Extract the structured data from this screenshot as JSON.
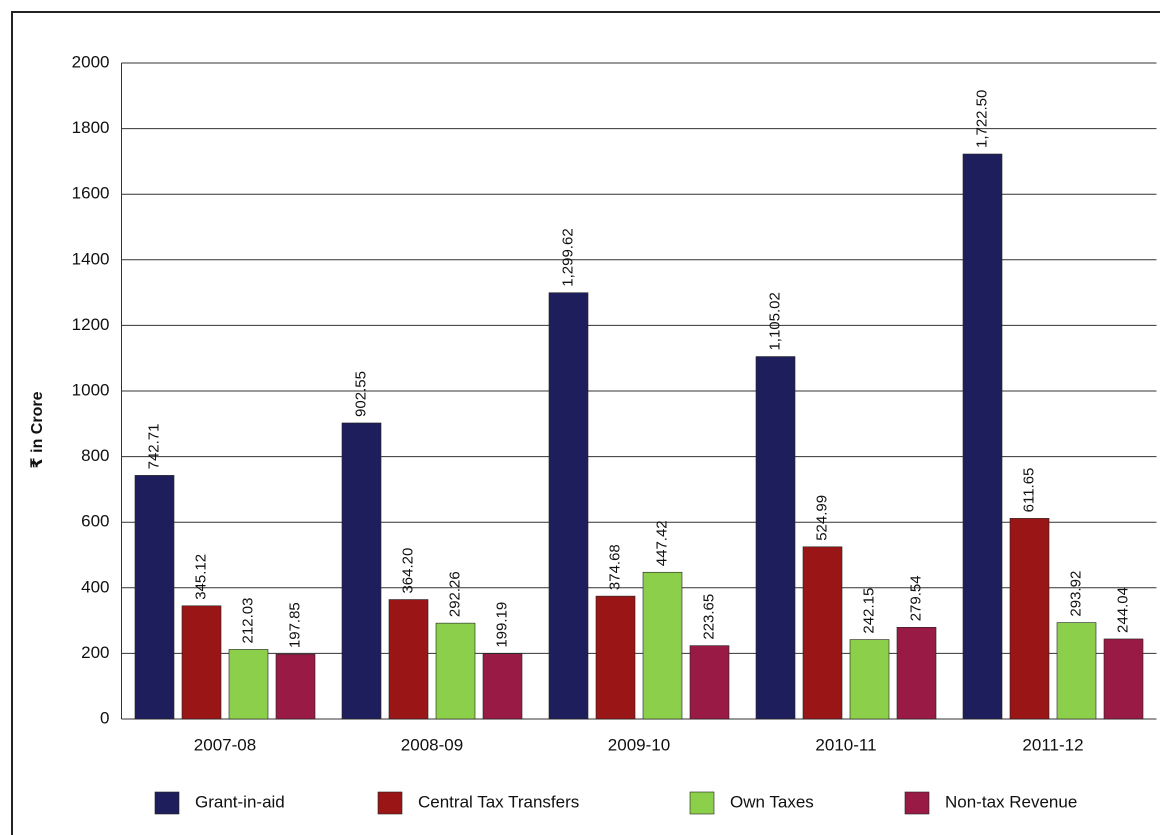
{
  "chart_data": {
    "type": "bar",
    "y_label": "₹ in Crore",
    "categories": [
      "2007-08",
      "2008-09",
      "2009-10",
      "2010-11",
      "2011-12"
    ],
    "series": [
      {
        "name": "Grant-in-aid",
        "color": "#1e1e5c",
        "values": [
          742.71,
          902.55,
          1299.62,
          1105.02,
          1722.5
        ],
        "value_labels": [
          "742.71",
          "902.55",
          "1,299.62",
          "1,105.02",
          "1,722.50"
        ]
      },
      {
        "name": "Central Tax Transfers",
        "color": "#9a1616",
        "values": [
          345.12,
          364.2,
          374.68,
          524.99,
          611.65
        ],
        "value_labels": [
          "345.12",
          "364.20",
          "374.68",
          "524.99",
          "611.65"
        ]
      },
      {
        "name": "Own Taxes",
        "color": "#8ccf4a",
        "values": [
          212.03,
          292.26,
          447.42,
          242.15,
          293.92
        ],
        "value_labels": [
          "212.03",
          "292.26",
          "447.42",
          "242.15",
          "293.92"
        ]
      },
      {
        "name": "Non-tax Revenue",
        "color": "#991a44",
        "values": [
          197.85,
          199.19,
          223.65,
          279.54,
          244.04
        ],
        "value_labels": [
          "197.85",
          "199.19",
          "223.65",
          "279.54",
          "244.04"
        ]
      }
    ],
    "ylim": [
      0,
      2000
    ],
    "yticks": [
      0,
      200,
      400,
      600,
      800,
      1000,
      1200,
      1400,
      1600,
      1800,
      2000
    ],
    "grid": true,
    "legend": "bottom"
  }
}
